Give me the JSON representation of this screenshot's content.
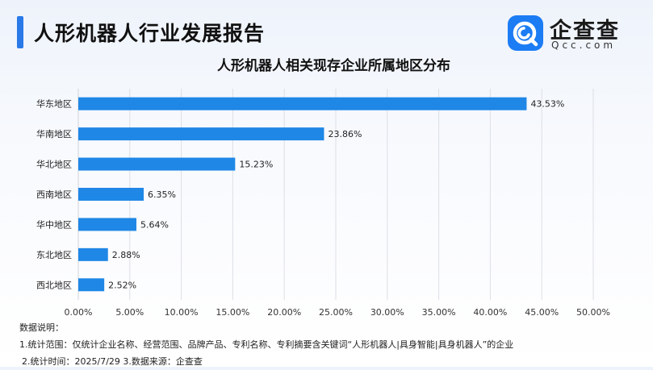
{
  "header": {
    "report_title": "人形机器人行业发展报告"
  },
  "logo": {
    "name_cn": "企查查",
    "name_en": "Qcc.com",
    "icon": "qcc-logo-icon"
  },
  "chart_data": {
    "type": "bar",
    "orientation": "horizontal",
    "title": "人形机器人相关现存企业所属地区分布",
    "categories": [
      "华东地区",
      "华南地区",
      "华北地区",
      "西南地区",
      "华中地区",
      "东北地区",
      "西北地区"
    ],
    "values": [
      43.53,
      23.86,
      15.23,
      6.35,
      5.64,
      2.88,
      2.52
    ],
    "data_labels": [
      "43.53%",
      "23.86%",
      "15.23%",
      "6.35%",
      "5.64%",
      "2.88%",
      "2.52%"
    ],
    "xlim": [
      0,
      50
    ],
    "xticks": [
      "0.00%",
      "5.00%",
      "10.00%",
      "15.00%",
      "20.00%",
      "25.00%",
      "30.00%",
      "35.00%",
      "40.00%",
      "45.00%",
      "50.00%"
    ],
    "grid": true,
    "bar_color": "#1f87e6"
  },
  "notes": {
    "heading": "数据说明：",
    "line1": "1.统计范围：仅统计企业名称、经营范围、品牌产品、专利名称、专利摘要含关键词“人形机器人|具身智能|具身机器人”的企业",
    "line2": "2.统计时间：2025/7/29  3.数据来源：企查查"
  }
}
